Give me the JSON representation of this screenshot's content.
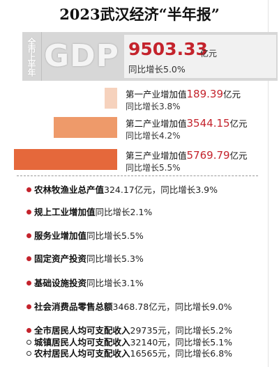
{
  "title": "2023武汉经济“半年报”",
  "gdp": {
    "tag": "全市上半年",
    "word": "GDP",
    "value": "9503.33",
    "unit": "亿元",
    "growth": "同比增长5.0%"
  },
  "chart_data": {
    "type": "bar",
    "categories": [
      "第一产业增加值",
      "第二产业增加值",
      "第三产业增加值"
    ],
    "values": [
      189.39,
      3544.15,
      5769.79
    ],
    "unit": "亿元",
    "growth": [
      "同比增长3.8%",
      "同比增长4.2%",
      "同比增长5.5%"
    ],
    "colors": [
      "#f6d2bd",
      "#ee9a6a",
      "#e5683b"
    ]
  },
  "industries": [
    {
      "name": "第一产业增加值",
      "value": "189.39",
      "unit": "亿元",
      "growth": "同比增长3.8%"
    },
    {
      "name": "第二产业增加值",
      "value": "3544.15",
      "unit": "亿元",
      "growth": "同比增长4.2%"
    },
    {
      "name": "第三产业增加值",
      "value": "5769.79",
      "unit": "亿元",
      "growth": "同比增长5.5%"
    }
  ],
  "stats": [
    {
      "label": "农林牧渔业总产值",
      "rest": "324.17亿元，同比增长3.9%"
    },
    {
      "label": "规上工业增加值",
      "rest": "同比增长2.1%"
    },
    {
      "label": "服务业增加值",
      "rest": "同比增长5.5%"
    },
    {
      "label": "固定资产投资",
      "rest": "同比增长5.3%"
    },
    {
      "label": "基础设施投资",
      "rest": "同比增长3.1%"
    },
    {
      "label": "社会消费品零售总额",
      "rest": "3468.78亿元，同比增长9.0%"
    },
    {
      "label": "全市居民人均可支配收入",
      "rest": "29735元，同比增长5.2%"
    },
    {
      "label": "城镇居民人均可支配收入",
      "rest": "32140元，同比增长5.1%"
    },
    {
      "label": "农村居民人均可支配收入",
      "rest": "16565元，同比增长6.8%"
    }
  ]
}
